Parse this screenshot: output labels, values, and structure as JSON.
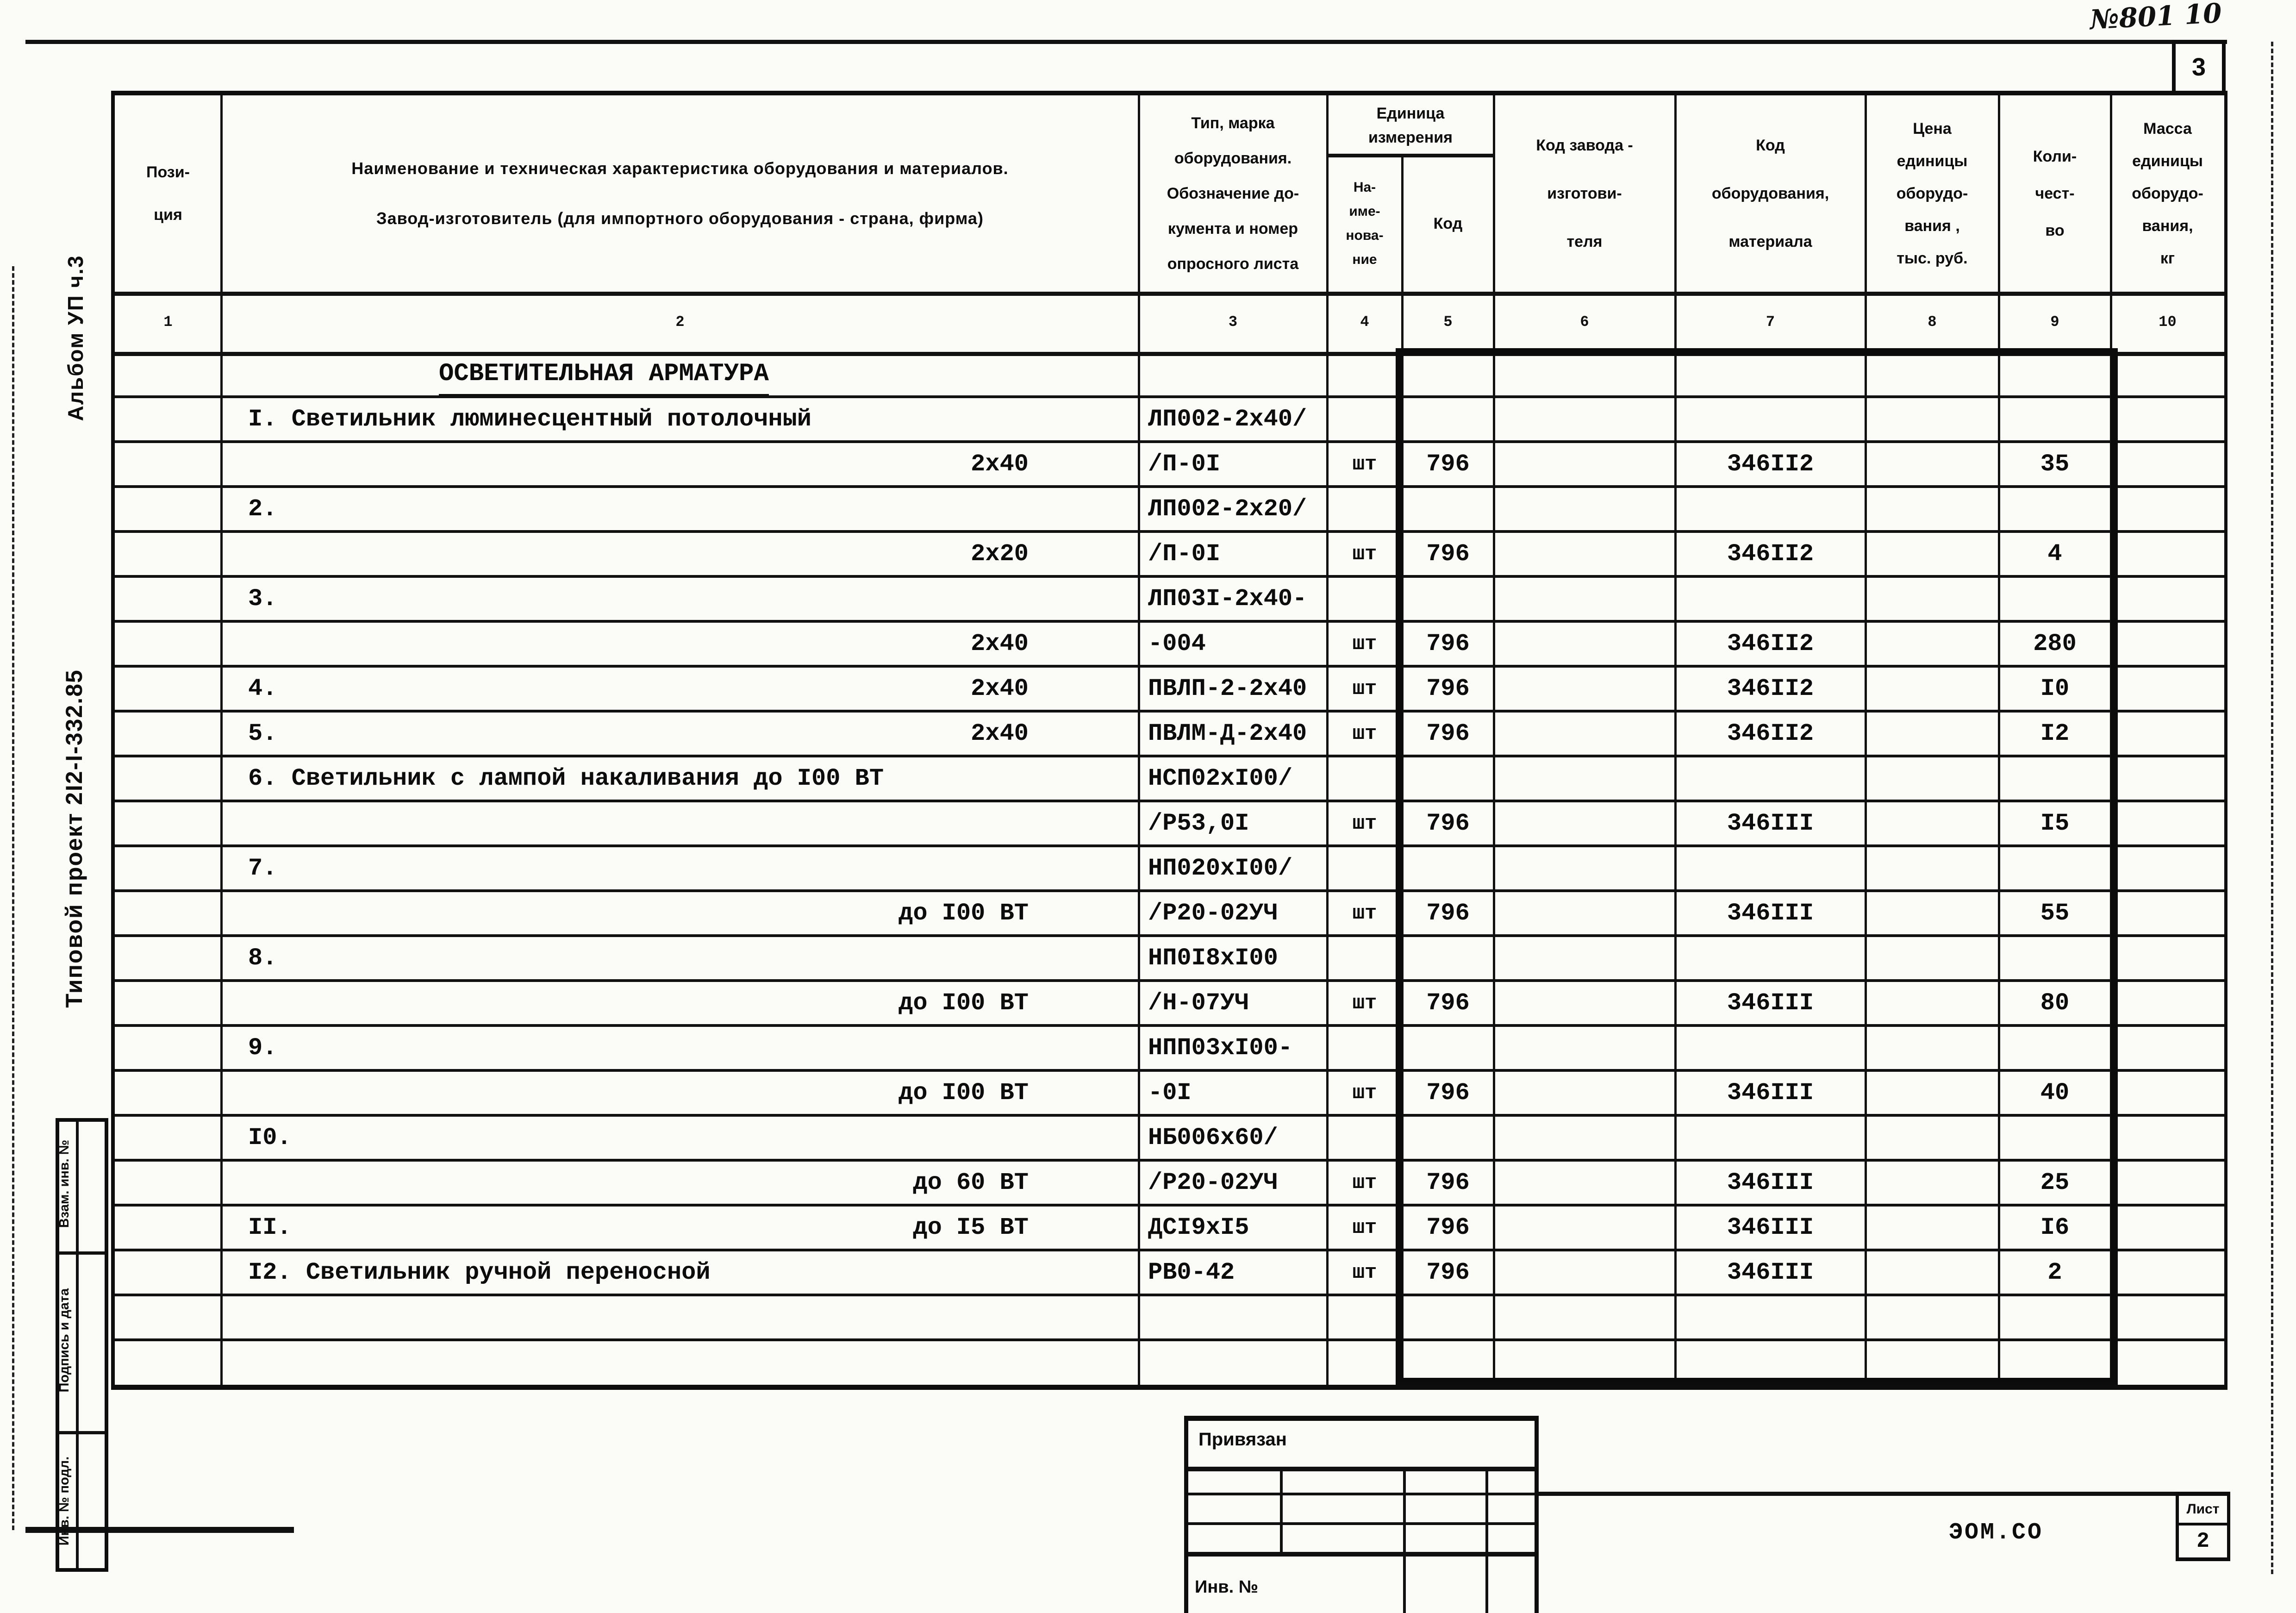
{
  "sheet": {
    "handwritten_note": "№801 10",
    "page_number": "3",
    "doc_code": "ЭОМ.СО",
    "sheet_label": "Лист",
    "sheet_number": "2"
  },
  "margin": {
    "album": "Альбом УП ч.3",
    "project": "Типовой проект 2I2-I-332.85",
    "stamp_top": "Взам. инв. №",
    "stamp_middle": "Подпись и дата",
    "stamp_bottom": "Инв. № подл."
  },
  "binding_box": {
    "title": "Привязан",
    "inv_label": "Инв. №"
  },
  "table": {
    "headers": {
      "col1": "Пози-\nция",
      "col2": "Наименование и техническая характеристика  оборудования и материалов.\nЗавод-изготовитель  (для импортного оборудования -  страна, фирма)",
      "col3": "Тип,  марка\nоборудования.\nОбозначение  до-\nкумента  и  номер\nопросного  листа",
      "unit_group": "Единица\nизмерения",
      "col4": "На-\nиме-\nнова-\nние",
      "col5": "Код",
      "col6": "Код  завода -\nизготови-\nтеля",
      "col7": "Код\nоборудования,\nматериала",
      "col8": "Цена\nединицы\nоборудо-\nвания ,\nтыс. руб.",
      "col9": "Коли-\nчест-\nво",
      "col10": "Масса\nединицы\nоборудо-\nвания,\nкг"
    },
    "column_numbers": [
      "1",
      "2",
      "3",
      "4",
      "5",
      "6",
      "7",
      "8",
      "9",
      "10"
    ],
    "section_title": "ОСВЕТИТЕЛЬНАЯ АРМАТУРА",
    "rows": [
      {
        "name": "I. Светильник люминесцентный потолочный",
        "spec": "",
        "type": "ЛП002-2х40/",
        "unit": "",
        "unit_code": "",
        "factory_code": "",
        "equip_code": "",
        "price": "",
        "qty": "",
        "mass": ""
      },
      {
        "name": "",
        "spec": "2х40",
        "type": "/П-0I",
        "unit": "шт",
        "unit_code": "796",
        "factory_code": "",
        "equip_code": "346II2",
        "price": "",
        "qty": "35",
        "mass": ""
      },
      {
        "name": "2.",
        "spec": "",
        "type": "ЛП002-2х20/",
        "unit": "",
        "unit_code": "",
        "factory_code": "",
        "equip_code": "",
        "price": "",
        "qty": "",
        "mass": ""
      },
      {
        "name": "",
        "spec": "2х20",
        "type": "/П-0I",
        "unit": "шт",
        "unit_code": "796",
        "factory_code": "",
        "equip_code": "346II2",
        "price": "",
        "qty": "4",
        "mass": ""
      },
      {
        "name": "3.",
        "spec": "",
        "type": "ЛП03I-2х40-",
        "unit": "",
        "unit_code": "",
        "factory_code": "",
        "equip_code": "",
        "price": "",
        "qty": "",
        "mass": ""
      },
      {
        "name": "",
        "spec": "2х40",
        "type": "-004",
        "unit": "шт",
        "unit_code": "796",
        "factory_code": "",
        "equip_code": "346II2",
        "price": "",
        "qty": "280",
        "mass": ""
      },
      {
        "name": "4.",
        "spec": "2х40",
        "type": "ПВЛП-2-2х40",
        "unit": "шт",
        "unit_code": "796",
        "factory_code": "",
        "equip_code": "346II2",
        "price": "",
        "qty": "I0",
        "mass": ""
      },
      {
        "name": "5.",
        "spec": "2х40",
        "type": "ПВЛМ-Д-2х40",
        "unit": "шт",
        "unit_code": "796",
        "factory_code": "",
        "equip_code": "346II2",
        "price": "",
        "qty": "I2",
        "mass": ""
      },
      {
        "name": "6. Светильник с лампой накаливания до I00 ВТ",
        "spec": "",
        "type": "НСП02хI00/",
        "unit": "",
        "unit_code": "",
        "factory_code": "",
        "equip_code": "",
        "price": "",
        "qty": "",
        "mass": ""
      },
      {
        "name": "",
        "spec": "",
        "type": "/Р53,0I",
        "unit": "шт",
        "unit_code": "796",
        "factory_code": "",
        "equip_code": "346III",
        "price": "",
        "qty": "I5",
        "mass": ""
      },
      {
        "name": "7.",
        "spec": "",
        "type": "НП020хI00/",
        "unit": "",
        "unit_code": "",
        "factory_code": "",
        "equip_code": "",
        "price": "",
        "qty": "",
        "mass": ""
      },
      {
        "name": "",
        "spec": "до I00 ВТ",
        "type": "/Р20-02УЧ",
        "unit": "шт",
        "unit_code": "796",
        "factory_code": "",
        "equip_code": "346III",
        "price": "",
        "qty": "55",
        "mass": ""
      },
      {
        "name": "8.",
        "spec": "",
        "type": "НП0I8хI00",
        "unit": "",
        "unit_code": "",
        "factory_code": "",
        "equip_code": "",
        "price": "",
        "qty": "",
        "mass": ""
      },
      {
        "name": "",
        "spec": "до I00 ВТ",
        "type": "/Н-07УЧ",
        "unit": "шт",
        "unit_code": "796",
        "factory_code": "",
        "equip_code": "346III",
        "price": "",
        "qty": "80",
        "mass": ""
      },
      {
        "name": "9.",
        "spec": "",
        "type": "НПП03хI00-",
        "unit": "",
        "unit_code": "",
        "factory_code": "",
        "equip_code": "",
        "price": "",
        "qty": "",
        "mass": ""
      },
      {
        "name": "",
        "spec": "до I00 ВТ",
        "type": "-0I",
        "unit": "шт",
        "unit_code": "796",
        "factory_code": "",
        "equip_code": "346III",
        "price": "",
        "qty": "40",
        "mass": ""
      },
      {
        "name": "I0.",
        "spec": "",
        "type": "НБ006х60/",
        "unit": "",
        "unit_code": "",
        "factory_code": "",
        "equip_code": "",
        "price": "",
        "qty": "",
        "mass": ""
      },
      {
        "name": "",
        "spec": "до 60 ВТ",
        "type": "/Р20-02УЧ",
        "unit": "шт",
        "unit_code": "796",
        "factory_code": "",
        "equip_code": "346III",
        "price": "",
        "qty": "25",
        "mass": ""
      },
      {
        "name": "II.",
        "spec": "до I5 ВТ",
        "type": "ДСI9хI5",
        "unit": "шт",
        "unit_code": "796",
        "factory_code": "",
        "equip_code": "346III",
        "price": "",
        "qty": "I6",
        "mass": ""
      },
      {
        "name": "I2. Светильник ручной переносной",
        "spec": "",
        "type": "РВ0-42",
        "unit": "шт",
        "unit_code": "796",
        "factory_code": "",
        "equip_code": "346III",
        "price": "",
        "qty": "2",
        "mass": ""
      },
      {
        "name": "",
        "spec": "",
        "type": "",
        "unit": "",
        "unit_code": "",
        "factory_code": "",
        "equip_code": "",
        "price": "",
        "qty": "",
        "mass": ""
      },
      {
        "name": "",
        "spec": "",
        "type": "",
        "unit": "",
        "unit_code": "",
        "factory_code": "",
        "equip_code": "",
        "price": "",
        "qty": "",
        "mass": ""
      }
    ]
  }
}
